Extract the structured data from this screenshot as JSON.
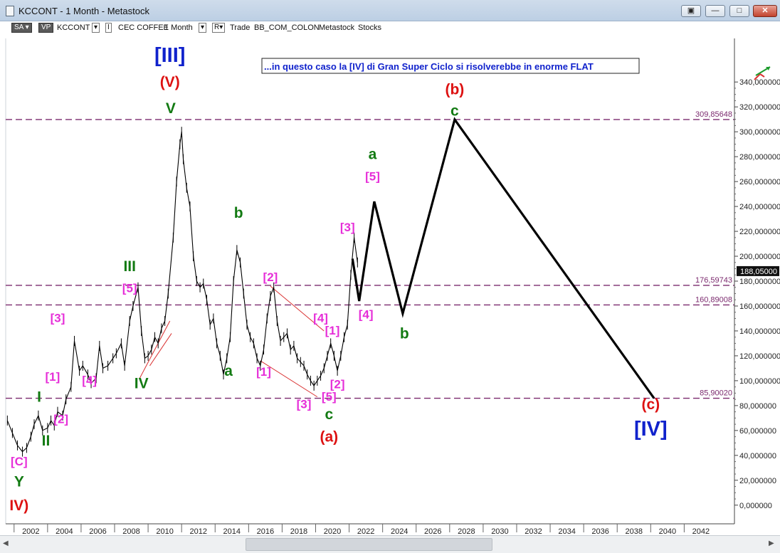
{
  "window": {
    "title": "KCCONT - 1 Month - Metastock",
    "buttons": [
      "restore-icon",
      "minimize-icon",
      "maximize-icon",
      "close-icon"
    ]
  },
  "toolbar": {
    "sa": "SA",
    "vp": "VP",
    "symbol": "KCCONT",
    "ccy_icon": "I",
    "name": "CEC COFFEE",
    "period": "1 Month",
    "r_btn": "R",
    "trade": "Trade",
    "folder": "BB_COM_COLON",
    "source": "Metastock",
    "kind": "Stocks"
  },
  "annotation": "...in questo caso la [IV] di Gran Super Ciclo si risolverebbe in enorme FLAT",
  "colors": {
    "price": "#000000",
    "hline": "#7b2a6e",
    "wave_red": "#dd1111",
    "wave_blue": "#1022cc",
    "wave_green": "#127a12",
    "wave_magenta": "#e62ed8",
    "channel": "#d93030",
    "axis_text": "#222222"
  },
  "chart_data": {
    "type": "line",
    "x_axis": {
      "labels": [
        "2002",
        "2004",
        "2006",
        "2008",
        "2010",
        "2012",
        "2014",
        "2016",
        "2018",
        "2020",
        "2022",
        "2024",
        "2026",
        "2028",
        "2030",
        "2032",
        "2034",
        "2036",
        "2038",
        "2040",
        "2042"
      ],
      "range": [
        2000.5,
        2044.0
      ]
    },
    "y_axis": {
      "labels": [
        "0,000000",
        "20,000000",
        "40,000000",
        "60,000000",
        "80,000000",
        "100,000000",
        "120,000000",
        "140,000000",
        "160,000000",
        "180,000000",
        "200,000000",
        "220,000000",
        "240,000000",
        "260,000000",
        "280,000000",
        "300,000000",
        "320,000000",
        "340,000000"
      ],
      "range": [
        -15,
        375
      ]
    },
    "last_price": {
      "value": 188.05,
      "label": "188,05000"
    },
    "hlines": [
      {
        "value": 309.85648,
        "label": "309,85648"
      },
      {
        "value": 176.59743,
        "label": "176,59743"
      },
      {
        "value": 160.89008,
        "label": "160,89008"
      },
      {
        "value": 85.9002,
        "label": "85,90020"
      }
    ],
    "price_series": {
      "name": "KCCONT",
      "x": [
        2000.6,
        2000.9,
        2001.2,
        2001.5,
        2001.75,
        2002.0,
        2002.2,
        2002.45,
        2002.7,
        2003.0,
        2003.2,
        2003.4,
        2003.6,
        2003.9,
        2004.1,
        2004.4,
        2004.6,
        2004.9,
        2005.1,
        2005.4,
        2005.6,
        2005.9,
        2006.1,
        2006.3,
        2006.6,
        2006.9,
        2007.1,
        2007.4,
        2007.6,
        2007.9,
        2008.1,
        2008.4,
        2008.6,
        2008.8,
        2009.0,
        2009.2,
        2009.4,
        2009.6,
        2009.8,
        2010.0,
        2010.2,
        2010.5,
        2010.7,
        2010.9,
        2011.0,
        2011.1,
        2011.3,
        2011.5,
        2011.7,
        2011.9,
        2012.1,
        2012.3,
        2012.5,
        2012.7,
        2012.9,
        2013.1,
        2013.3,
        2013.5,
        2013.7,
        2013.9,
        2014.1,
        2014.3,
        2014.5,
        2014.7,
        2014.9,
        2015.1,
        2015.3,
        2015.5,
        2015.7,
        2015.9,
        2016.1,
        2016.3,
        2016.5,
        2016.7,
        2016.9,
        2017.1,
        2017.3,
        2017.5,
        2017.7,
        2017.9,
        2018.1,
        2018.3,
        2018.5,
        2018.7,
        2018.9,
        2019.1,
        2019.3,
        2019.5,
        2019.7,
        2019.9,
        2020.1,
        2020.3,
        2020.5,
        2020.7,
        2020.9,
        2021.1,
        2021.3
      ],
      "y": [
        68,
        58,
        48,
        43,
        46,
        55,
        65,
        72,
        60,
        62,
        68,
        64,
        75,
        72,
        85,
        95,
        132,
        108,
        112,
        105,
        98,
        102,
        128,
        110,
        112,
        118,
        122,
        130,
        112,
        148,
        160,
        175,
        140,
        118,
        120,
        125,
        135,
        130,
        142,
        148,
        170,
        215,
        260,
        290,
        300,
        278,
        255,
        240,
        200,
        180,
        175,
        178,
        165,
        145,
        150,
        130,
        120,
        105,
        118,
        135,
        180,
        205,
        195,
        170,
        145,
        135,
        130,
        118,
        112,
        125,
        150,
        168,
        175,
        148,
        132,
        135,
        138,
        125,
        128,
        118,
        115,
        112,
        105,
        100,
        96,
        100,
        104,
        110,
        120,
        130,
        120,
        108,
        120,
        135,
        145,
        185,
        215
      ],
      "extra_points": [
        [
          2021.5,
          195
        ]
      ]
    },
    "projection": {
      "name": "projection",
      "x": [
        2021.2,
        2021.6,
        2022.5,
        2024.2,
        2027.3,
        2039.2
      ],
      "y": [
        198,
        164,
        244,
        154,
        309.86,
        85.9
      ]
    },
    "wave_labels": [
      {
        "text": "[III]",
        "x": 2010.3,
        "y": 356,
        "color": "blue",
        "size": "lg"
      },
      {
        "text": "(V)",
        "x": 2010.3,
        "y": 336,
        "color": "red",
        "size": "md"
      },
      {
        "text": "V",
        "x": 2010.35,
        "y": 315,
        "color": "green",
        "size": "md"
      },
      {
        "text": "b",
        "x": 2014.4,
        "y": 231,
        "color": "green",
        "size": "md"
      },
      {
        "text": "a",
        "x": 2013.8,
        "y": 104,
        "color": "green",
        "size": "md"
      },
      {
        "text": "III",
        "x": 2007.9,
        "y": 188,
        "color": "green",
        "size": "md"
      },
      {
        "text": "[5]",
        "x": 2007.9,
        "y": 171,
        "color": "magenta",
        "size": "sm"
      },
      {
        "text": "IV",
        "x": 2008.6,
        "y": 94,
        "color": "green",
        "size": "md"
      },
      {
        "text": "[4]",
        "x": 2005.5,
        "y": 97,
        "color": "magenta",
        "size": "sm"
      },
      {
        "text": "[3]",
        "x": 2003.6,
        "y": 147,
        "color": "magenta",
        "size": "sm"
      },
      {
        "text": "[1]",
        "x": 2003.3,
        "y": 100,
        "color": "magenta",
        "size": "sm"
      },
      {
        "text": "I",
        "x": 2002.5,
        "y": 83,
        "color": "green",
        "size": "md"
      },
      {
        "text": "[2]",
        "x": 2003.8,
        "y": 66,
        "color": "magenta",
        "size": "sm"
      },
      {
        "text": "II",
        "x": 2002.9,
        "y": 48,
        "color": "green",
        "size": "md"
      },
      {
        "text": "[C]",
        "x": 2001.3,
        "y": 32,
        "color": "magenta",
        "size": "sm"
      },
      {
        "text": "Y",
        "x": 2001.3,
        "y": 15,
        "color": "green",
        "size": "md"
      },
      {
        "text": "IV)",
        "x": 2001.3,
        "y": -4,
        "color": "red",
        "size": "md"
      },
      {
        "text": "[2]",
        "x": 2016.3,
        "y": 180,
        "color": "magenta",
        "size": "sm"
      },
      {
        "text": "[1]",
        "x": 2015.9,
        "y": 104,
        "color": "magenta",
        "size": "sm"
      },
      {
        "text": "[3]",
        "x": 2018.3,
        "y": 78,
        "color": "magenta",
        "size": "sm"
      },
      {
        "text": "[4]",
        "x": 2019.3,
        "y": 147,
        "color": "magenta",
        "size": "sm"
      },
      {
        "text": "[1]",
        "x": 2020.0,
        "y": 137,
        "color": "magenta",
        "size": "sm"
      },
      {
        "text": "[5]",
        "x": 2019.8,
        "y": 84,
        "color": "magenta",
        "size": "sm"
      },
      {
        "text": "[2]",
        "x": 2020.3,
        "y": 94,
        "color": "magenta",
        "size": "sm"
      },
      {
        "text": "c",
        "x": 2019.8,
        "y": 69,
        "color": "green",
        "size": "md"
      },
      {
        "text": "(a)",
        "x": 2019.8,
        "y": 51,
        "color": "red",
        "size": "md"
      },
      {
        "text": "[3]",
        "x": 2020.9,
        "y": 220,
        "color": "magenta",
        "size": "sm"
      },
      {
        "text": "[4]",
        "x": 2022.0,
        "y": 150,
        "color": "magenta",
        "size": "sm"
      },
      {
        "text": "a",
        "x": 2022.4,
        "y": 278,
        "color": "green",
        "size": "md"
      },
      {
        "text": "[5]",
        "x": 2022.4,
        "y": 261,
        "color": "magenta",
        "size": "sm"
      },
      {
        "text": "b",
        "x": 2024.3,
        "y": 134,
        "color": "green",
        "size": "md"
      },
      {
        "text": "(b)",
        "x": 2027.3,
        "y": 330,
        "color": "red",
        "size": "md"
      },
      {
        "text": "c",
        "x": 2027.3,
        "y": 313,
        "color": "green",
        "size": "md"
      },
      {
        "text": "(c)",
        "x": 2039.0,
        "y": 77,
        "color": "red",
        "size": "md"
      },
      {
        "text": "[IV]",
        "x": 2039.0,
        "y": 56,
        "color": "blue",
        "size": "lg"
      }
    ],
    "channel_lines": [
      {
        "x": [
          2008.5,
          2010.3
        ],
        "y": [
          102,
          148
        ]
      },
      {
        "x": [
          2009.1,
          2010.4
        ],
        "y": [
          112,
          138
        ]
      },
      {
        "x": [
          2016.3,
          2019.5
        ],
        "y": [
          176,
          140
        ]
      },
      {
        "x": [
          2015.7,
          2019.1
        ],
        "y": [
          116,
          87
        ]
      }
    ]
  }
}
